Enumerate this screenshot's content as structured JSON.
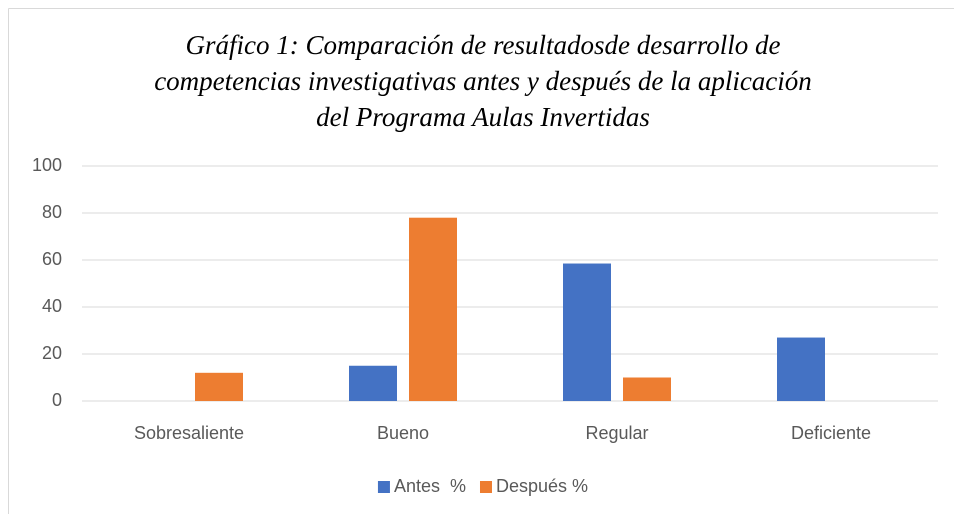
{
  "chart_data": {
    "type": "bar",
    "title": [
      "Gráfico 1: Comparación de resultadosde desarrollo de",
      "competencias investigativas antes y después de la aplicación",
      "del Programa Aulas Invertidas"
    ],
    "categories": [
      "Sobresaliente",
      "Bueno",
      "Regular",
      "Deficiente"
    ],
    "series": [
      {
        "name": "Antes  %",
        "color": "#4472c4",
        "values": [
          0,
          15,
          58.5,
          27
        ]
      },
      {
        "name": "Después %",
        "color": "#ed7d31",
        "values": [
          12,
          78,
          10,
          0
        ]
      }
    ],
    "ylim": [
      0,
      100
    ],
    "yticks": [
      0,
      20,
      40,
      60,
      80,
      100
    ],
    "grid": true,
    "legend": "bottom"
  }
}
